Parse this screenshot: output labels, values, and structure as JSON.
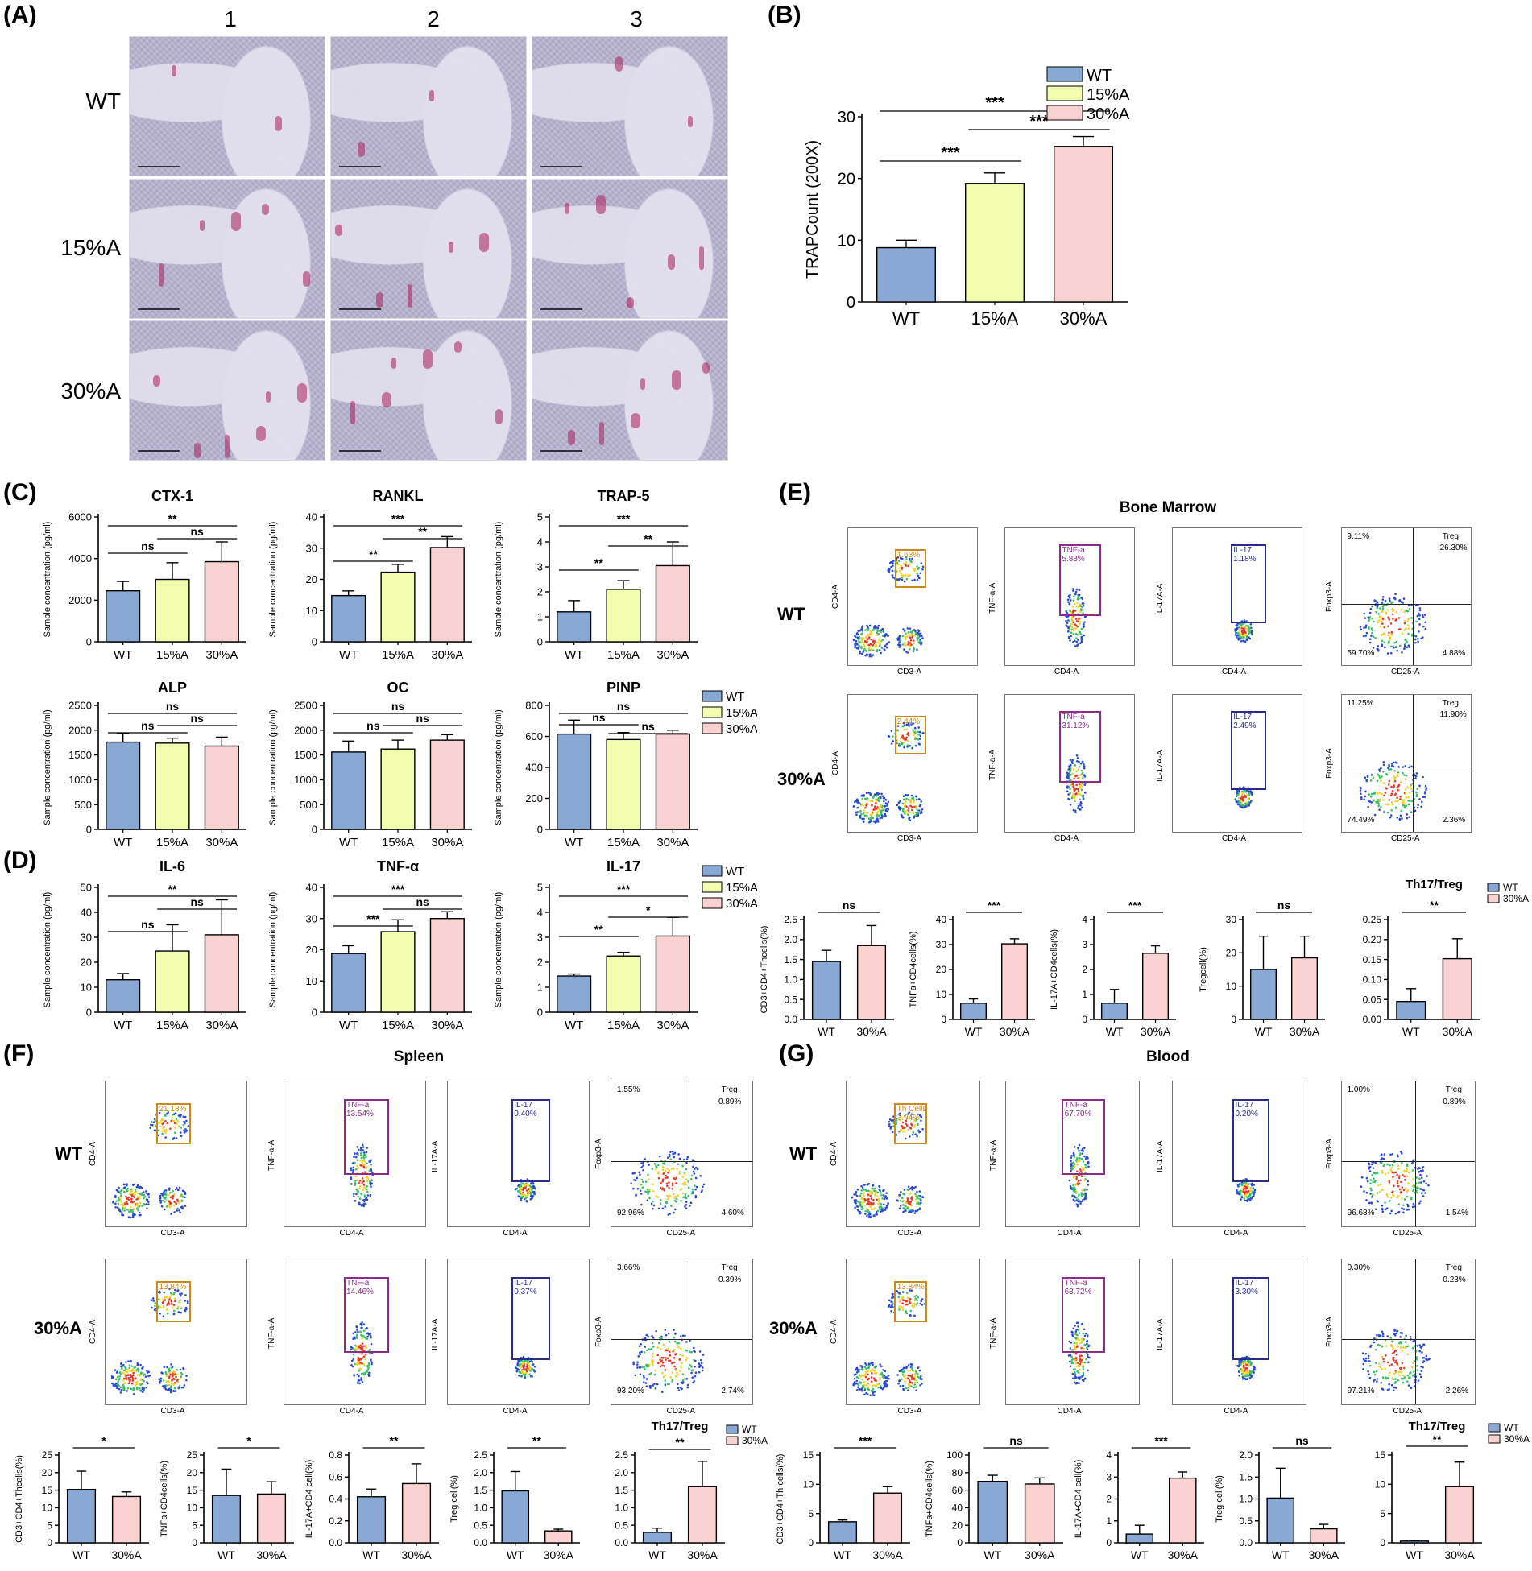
{
  "panels": {
    "A": "(A)",
    "B": "(B)",
    "C": "(C)",
    "D": "(D)",
    "E": "(E)",
    "F": "(F)",
    "G": "(G)"
  },
  "panel_a": {
    "columns": [
      "1",
      "2",
      "3"
    ],
    "rows": [
      "WT",
      "15%A",
      "30%A"
    ]
  },
  "groups": {
    "wt": "WT",
    "a15": "15%A",
    "a30": "30%A"
  },
  "colors": {
    "wt": "#89a8d4",
    "a15": "#f2fdb0",
    "a30": "#fbd2d2",
    "gate_cd4": "#c98a1c",
    "gate_tnf": "#8b2c8b",
    "gate_il17": "#2b2b8c"
  },
  "flow_titles": {
    "E": "Bone Marrow",
    "F": "Spleen",
    "G": "Blood"
  },
  "chart_data": [
    {
      "id": "B",
      "type": "bar",
      "categories": [
        "WT",
        "15%A",
        "30%A"
      ],
      "values": [
        8.8,
        19.2,
        25.2
      ],
      "errors": [
        1.2,
        1.7,
        1.6
      ],
      "ylabel": "TRAPCount (200X)",
      "ylim": [
        0,
        30
      ],
      "yticks": [
        0,
        10,
        20,
        30
      ],
      "legend": [
        "WT",
        "15%A",
        "30%A"
      ],
      "sig": [
        "***",
        "***",
        "***"
      ]
    },
    {
      "id": "C1",
      "type": "bar",
      "title": "CTX-1",
      "categories": [
        "WT",
        "15%A",
        "30%A"
      ],
      "values": [
        2450,
        3000,
        3850
      ],
      "errors": [
        450,
        800,
        950
      ],
      "ylim": [
        0,
        6000
      ],
      "yticks": [
        0,
        2000,
        4000,
        6000
      ],
      "ylabel": "Sample concentration (pg/ml)",
      "sig": [
        "ns",
        "ns",
        "**"
      ]
    },
    {
      "id": "C2",
      "type": "bar",
      "title": "RANKL",
      "categories": [
        "WT",
        "15%A",
        "30%A"
      ],
      "values": [
        14.8,
        22.3,
        30.2
      ],
      "errors": [
        1.5,
        2.5,
        3.5
      ],
      "ylim": [
        0,
        40
      ],
      "yticks": [
        0,
        10,
        20,
        30,
        40
      ],
      "ylabel": "Sample concentration (pg/ml)",
      "sig": [
        "**",
        "**",
        "***"
      ]
    },
    {
      "id": "C3",
      "type": "bar",
      "title": "TRAP-5",
      "categories": [
        "WT",
        "15%A",
        "30%A"
      ],
      "values": [
        1.2,
        2.1,
        3.05
      ],
      "errors": [
        0.45,
        0.35,
        0.95
      ],
      "ylim": [
        0,
        5
      ],
      "yticks": [
        0,
        1,
        2,
        3,
        4,
        5
      ],
      "ylabel": "Sample concentration (pg/ml)",
      "sig": [
        "**",
        "**",
        "***"
      ]
    },
    {
      "id": "C4",
      "type": "bar",
      "title": "ALP",
      "categories": [
        "WT",
        "15%A",
        "30%A"
      ],
      "values": [
        1760,
        1740,
        1680
      ],
      "errors": [
        180,
        100,
        180
      ],
      "ylim": [
        0,
        2500
      ],
      "yticks": [
        0,
        500,
        1000,
        1500,
        2000,
        2500
      ],
      "ylabel": "Sample concentration (pg/ml)",
      "sig": [
        "ns",
        "ns",
        "ns"
      ]
    },
    {
      "id": "C5",
      "type": "bar",
      "title": "OC",
      "categories": [
        "WT",
        "15%A",
        "30%A"
      ],
      "values": [
        1560,
        1620,
        1800
      ],
      "errors": [
        220,
        180,
        110
      ],
      "ylim": [
        0,
        2500
      ],
      "yticks": [
        0,
        500,
        1000,
        1500,
        2000,
        2500
      ],
      "ylabel": "Sample concentration (pg/ml)",
      "sig": [
        "ns",
        "ns",
        "ns"
      ]
    },
    {
      "id": "C6",
      "type": "bar",
      "title": "PINP",
      "categories": [
        "WT",
        "15%A",
        "30%A"
      ],
      "values": [
        615,
        580,
        615
      ],
      "errors": [
        90,
        45,
        25
      ],
      "ylim": [
        0,
        800
      ],
      "yticks": [
        0,
        200,
        400,
        600,
        800
      ],
      "ylabel": "Sample concentration (pg/ml)",
      "sig": [
        "ns",
        "ns",
        "ns"
      ],
      "legend": [
        "WT",
        "15%A",
        "30%A"
      ]
    },
    {
      "id": "D1",
      "type": "bar",
      "title": "IL-6",
      "categories": [
        "WT",
        "15%A",
        "30%A"
      ],
      "values": [
        13,
        24.5,
        31
      ],
      "errors": [
        2.5,
        10.5,
        14
      ],
      "ylim": [
        0,
        50
      ],
      "yticks": [
        0,
        10,
        20,
        30,
        40,
        50
      ],
      "ylabel": "Sample concentration (pg/ml)",
      "sig": [
        "ns",
        "ns",
        "**"
      ]
    },
    {
      "id": "D2",
      "type": "bar",
      "title": "TNF-α",
      "categories": [
        "WT",
        "15%A",
        "30%A"
      ],
      "values": [
        18.8,
        25.8,
        30
      ],
      "errors": [
        2.5,
        3.8,
        2.2
      ],
      "ylim": [
        0,
        40
      ],
      "yticks": [
        0,
        10,
        20,
        30,
        40
      ],
      "ylabel": "Sample concentration (pg/ml)",
      "sig": [
        "***",
        "ns",
        "***"
      ]
    },
    {
      "id": "D3",
      "type": "bar",
      "title": "IL-17",
      "categories": [
        "WT",
        "15%A",
        "30%A"
      ],
      "values": [
        1.45,
        2.25,
        3.05
      ],
      "errors": [
        0.08,
        0.15,
        0.75
      ],
      "ylim": [
        0,
        5
      ],
      "yticks": [
        0,
        1,
        2,
        3,
        4,
        5
      ],
      "ylabel": "Sample concentration (pg/ml)",
      "sig": [
        "**",
        "*",
        "***"
      ],
      "legend": [
        "WT",
        "15%A",
        "30%A"
      ]
    },
    {
      "id": "E1",
      "type": "bar",
      "categories": [
        "WT",
        "30%A"
      ],
      "values": [
        1.45,
        1.85
      ],
      "errors": [
        0.28,
        0.5
      ],
      "ylim": [
        0,
        2.5
      ],
      "yticks": [
        "0.0",
        "0.5",
        "1.0",
        "1.5",
        "2.0",
        "2.5"
      ],
      "ylabel": "CD3+CD4+Thcells(%)",
      "sig": [
        "ns"
      ]
    },
    {
      "id": "E2",
      "type": "bar",
      "categories": [
        "WT",
        "30%A"
      ],
      "values": [
        6.5,
        30.3
      ],
      "errors": [
        1.7,
        2
      ],
      "ylim": [
        0,
        40
      ],
      "yticks": [
        0,
        10,
        20,
        30,
        40
      ],
      "ylabel": "TNFa+CD4cells(%)",
      "sig": [
        "***"
      ]
    },
    {
      "id": "E3",
      "type": "bar",
      "categories": [
        "WT",
        "30%A"
      ],
      "values": [
        0.65,
        2.65
      ],
      "errors": [
        0.55,
        0.3
      ],
      "ylim": [
        0,
        4
      ],
      "yticks": [
        0,
        1,
        2,
        3,
        4
      ],
      "ylabel": "IL-17A+CD4cells(%)",
      "sig": [
        "***"
      ]
    },
    {
      "id": "E4",
      "type": "bar",
      "categories": [
        "WT",
        "30%A"
      ],
      "values": [
        15,
        18.5
      ],
      "errors": [
        10,
        6.5
      ],
      "ylim": [
        0,
        30
      ],
      "yticks": [
        0,
        10,
        20,
        30
      ],
      "ylabel": "Tregcell(%)",
      "sig": [
        "ns"
      ]
    },
    {
      "id": "E5",
      "type": "bar",
      "title": "Th17/Treg",
      "categories": [
        "WT",
        "30%A"
      ],
      "values": [
        0.045,
        0.152
      ],
      "errors": [
        0.032,
        0.05
      ],
      "ylim": [
        0,
        0.25
      ],
      "yticks": [
        "0.00",
        "0.05",
        "0.10",
        "0.15",
        "0.20",
        "0.25"
      ],
      "sig": [
        "**"
      ],
      "legend": [
        "WT",
        "30%A"
      ]
    },
    {
      "id": "F1",
      "type": "bar",
      "categories": [
        "WT",
        "30%A"
      ],
      "values": [
        15.2,
        13.2
      ],
      "errors": [
        5.2,
        1.3
      ],
      "ylim": [
        0,
        25
      ],
      "yticks": [
        0,
        5,
        10,
        15,
        20,
        25
      ],
      "ylabel": "CD3+CD4+Thcells(%)",
      "sig": [
        "*"
      ]
    },
    {
      "id": "F2",
      "type": "bar",
      "categories": [
        "WT",
        "30%A"
      ],
      "values": [
        13.5,
        13.9
      ],
      "errors": [
        7.5,
        3.5
      ],
      "ylim": [
        0,
        25
      ],
      "yticks": [
        0,
        5,
        10,
        15,
        20,
        25
      ],
      "ylabel": "TNFa+CD4cells(%)",
      "sig": [
        "*"
      ]
    },
    {
      "id": "F3",
      "type": "bar",
      "categories": [
        "WT",
        "30%A"
      ],
      "values": [
        0.42,
        0.54
      ],
      "errors": [
        0.07,
        0.18
      ],
      "ylim": [
        0,
        0.8
      ],
      "yticks": [
        "0.0",
        "0.2",
        "0.4",
        "0.6",
        "0.8"
      ],
      "ylabel": "IL-17A+CD4 cell(%)",
      "sig": [
        "**"
      ]
    },
    {
      "id": "F4",
      "type": "bar",
      "categories": [
        "WT",
        "30%A"
      ],
      "values": [
        1.48,
        0.34
      ],
      "errors": [
        0.55,
        0.05
      ],
      "ylim": [
        0,
        2.5
      ],
      "yticks": [
        "0.0",
        "0.5",
        "1.0",
        "1.5",
        "2.0",
        "2.5"
      ],
      "ylabel": "Treg cell(%)",
      "sig": [
        "**"
      ]
    },
    {
      "id": "F5",
      "type": "bar",
      "title": "Th17/Treg",
      "categories": [
        "WT",
        "30%A"
      ],
      "values": [
        0.3,
        1.6
      ],
      "errors": [
        0.12,
        0.72
      ],
      "ylim": [
        0,
        2.5
      ],
      "yticks": [
        "0.0",
        "0.5",
        "1.0",
        "1.5",
        "2.0",
        "2.5"
      ],
      "sig": [
        "**"
      ],
      "legend": [
        "WT",
        "30%A"
      ]
    },
    {
      "id": "G1",
      "type": "bar",
      "categories": [
        "WT",
        "30%A"
      ],
      "values": [
        3.6,
        8.5
      ],
      "errors": [
        0.3,
        1.1
      ],
      "ylim": [
        0,
        15
      ],
      "yticks": [
        0,
        5,
        10,
        15
      ],
      "ylabel": "CD3+CD4+Th cells(%)",
      "sig": [
        "***"
      ]
    },
    {
      "id": "G2",
      "type": "bar",
      "categories": [
        "WT",
        "30%A"
      ],
      "values": [
        70,
        67
      ],
      "errors": [
        7,
        7
      ],
      "ylim": [
        0,
        100
      ],
      "yticks": [
        0,
        20,
        40,
        60,
        80,
        100
      ],
      "ylabel": "TNFa+CD4cells(%)",
      "sig": [
        "ns"
      ]
    },
    {
      "id": "G3",
      "type": "bar",
      "categories": [
        "WT",
        "30%A"
      ],
      "values": [
        0.4,
        2.95
      ],
      "errors": [
        0.4,
        0.28
      ],
      "ylim": [
        0,
        4
      ],
      "yticks": [
        0,
        1,
        2,
        3,
        4
      ],
      "ylabel": "IL-17A+CD4 cell(%)",
      "sig": [
        "***"
      ]
    },
    {
      "id": "G4",
      "type": "bar",
      "categories": [
        "WT",
        "30%A"
      ],
      "values": [
        1.02,
        0.32
      ],
      "errors": [
        0.68,
        0.1
      ],
      "ylim": [
        0,
        2
      ],
      "yticks": [
        "0.0",
        "0.5",
        "1.0",
        "1.5",
        "2.0"
      ],
      "ylabel": "Treg cell(%)",
      "sig": [
        "ns"
      ]
    },
    {
      "id": "G5",
      "type": "bar",
      "title": "Th17/Treg",
      "categories": [
        "WT",
        "30%A"
      ],
      "values": [
        0.3,
        9.6
      ],
      "errors": [
        0.15,
        4.2
      ],
      "ylim": [
        0,
        15
      ],
      "yticks": [
        0,
        5,
        10,
        15
      ],
      "sig": [
        "**"
      ],
      "legend": [
        "WT",
        "30%A"
      ]
    }
  ],
  "flow": {
    "E": {
      "WT": {
        "cd4_gate": "1.63%",
        "tnf_gate": "TNF-a",
        "tnf_val": "5.83%",
        "il17_gate": "IL-17",
        "il17_val": "1.18%",
        "q_ul": "9.11%",
        "q_ur": "Treg",
        "q_ur_val": "26.30%",
        "q_ll": "59.70%",
        "q_lr": "4.88%"
      },
      "30%A": {
        "cd4_gate": "2.44%",
        "tnf_gate": "TNF-a",
        "tnf_val": "31.12%",
        "il17_gate": "IL-17",
        "il17_val": "2.49%",
        "q_ul": "11.25%",
        "q_ur": "Treg",
        "q_ur_val": "11.90%",
        "q_ll": "74.49%",
        "q_lr": "2.36%"
      }
    },
    "F": {
      "WT": {
        "cd4_gate": "21.18%",
        "tnf_gate": "TNF-a",
        "tnf_val": "13.54%",
        "il17_gate": "IL-17",
        "il17_val": "0.40%",
        "q_ul": "1.55%",
        "q_ur": "Treg",
        "q_ur_val": "0.89%",
        "q_ll": "92.96%",
        "q_lr": "4.60%"
      },
      "30%A": {
        "cd4_gate": "13.84%",
        "tnf_gate": "TNF-a",
        "tnf_val": "14.46%",
        "il17_gate": "IL-17",
        "il17_val": "0.37%",
        "q_ul": "3.66%",
        "q_ur": "Treg",
        "q_ur_val": "0.39%",
        "q_ll": "93.20%",
        "q_lr": "2.74%"
      }
    },
    "G": {
      "WT": {
        "cd4_gate": "Th Cells",
        "cd4_val": "3.94%",
        "tnf_gate": "TNF-a",
        "tnf_val": "67.70%",
        "il17_gate": "IL-17",
        "il17_val": "0.20%",
        "q_ul": "1.00%",
        "q_ur": "Treg",
        "q_ur_val": "0.89%",
        "q_ll": "96.68%",
        "q_lr": "1.54%"
      },
      "30%A": {
        "cd4_gate": "13.84%",
        "tnf_gate": "TNF-a",
        "tnf_val": "63.72%",
        "il17_gate": "IL-17",
        "il17_val": "3.30%",
        "q_ul": "0.30%",
        "q_ur": "Treg",
        "q_ur_val": "0.23%",
        "q_ll": "97.21%",
        "q_lr": "2.26%"
      }
    }
  },
  "flow_axes": {
    "cd3": "CD3-A",
    "cd4": "CD4-A",
    "tnf": "TNF-a-A",
    "il17": "IL-17A-A",
    "foxp3": "Foxp3-A",
    "cd25": "CD25-A"
  }
}
